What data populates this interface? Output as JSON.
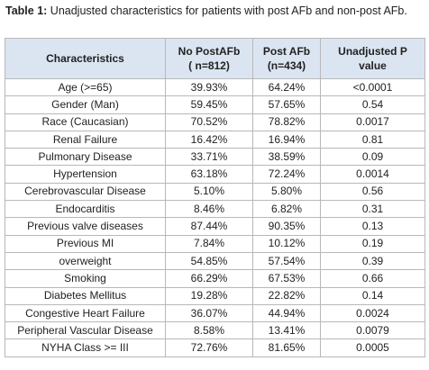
{
  "caption": {
    "label": "Table 1:",
    "text": "Unadjusted characteristics for patients with post AFb and non-post AFb."
  },
  "table": {
    "header": [
      [
        "Characteristics"
      ],
      [
        "No PostAFb",
        "( n=812)"
      ],
      [
        "Post AFb",
        "(n=434)"
      ],
      [
        "Unadjusted P",
        "value"
      ]
    ],
    "rows": [
      [
        "Age  (>=65)",
        "39.93%",
        "64.24%",
        "<0.0001"
      ],
      [
        "Gender (Man)",
        "59.45%",
        "57.65%",
        "0.54"
      ],
      [
        "Race (Caucasian)",
        "70.52%",
        "78.82%",
        "0.0017"
      ],
      [
        "Renal Failure",
        "16.42%",
        "16.94%",
        "0.81"
      ],
      [
        "Pulmonary Disease",
        "33.71%",
        "38.59%",
        "0.09"
      ],
      [
        "Hypertension",
        "63.18%",
        "72.24%",
        "0.0014"
      ],
      [
        "Cerebrovascular Disease",
        "5.10%",
        "5.80%",
        "0.56"
      ],
      [
        "Endocarditis",
        "8.46%",
        "6.82%",
        "0.31"
      ],
      [
        "Previous valve diseases",
        "87.44%",
        "90.35%",
        "0.13"
      ],
      [
        "Previous MI",
        "7.84%",
        "10.12%",
        "0.19"
      ],
      [
        "overweight",
        "54.85%",
        "57.54%",
        "0.39"
      ],
      [
        "Smoking",
        "66.29%",
        "67.53%",
        "0.66"
      ],
      [
        "Diabetes Mellitus",
        "19.28%",
        "22.82%",
        "0.14"
      ],
      [
        "Congestive Heart Failure",
        "36.07%",
        "44.94%",
        "0.0024"
      ],
      [
        "Peripheral Vascular Disease",
        "8.58%",
        "13.41%",
        "0.0079"
      ],
      [
        "NYHA Class >= III",
        "72.76%",
        "81.65%",
        "0.0005"
      ]
    ]
  }
}
